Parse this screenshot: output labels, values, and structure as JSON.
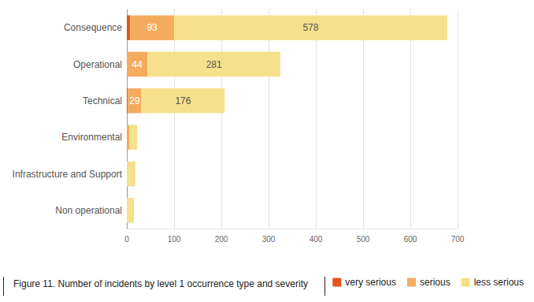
{
  "chart_data": {
    "type": "bar",
    "orientation": "horizontal",
    "stacked": true,
    "title": "Figure 11. Number of incidents by level 1 occurrence type and severity",
    "categories": [
      "Consequence",
      "Operational",
      "Technical",
      "Environmental",
      "Infrastructure and Support",
      "Non operational"
    ],
    "series": [
      {
        "name": "very serious",
        "color": "#e8541e",
        "values": [
          7,
          0,
          2,
          0,
          0,
          0
        ],
        "value_labels": [
          null,
          null,
          null,
          null,
          null,
          null
        ]
      },
      {
        "name": "serious",
        "color": "#f5ab5e",
        "values": [
          93,
          44,
          29,
          5,
          0,
          0
        ],
        "value_labels": [
          "93",
          "44",
          "29",
          null,
          null,
          null
        ]
      },
      {
        "name": "less serious",
        "color": "#f6e08b",
        "values": [
          578,
          281,
          176,
          17,
          18,
          15
        ],
        "value_labels": [
          "578",
          "281",
          "176",
          null,
          null,
          null
        ]
      }
    ],
    "xlim": [
      0,
      700
    ],
    "xticks": [
      0,
      100,
      200,
      300,
      400,
      500,
      600,
      700
    ],
    "grid": true,
    "legend": "bottom-right",
    "data_labels": true
  }
}
